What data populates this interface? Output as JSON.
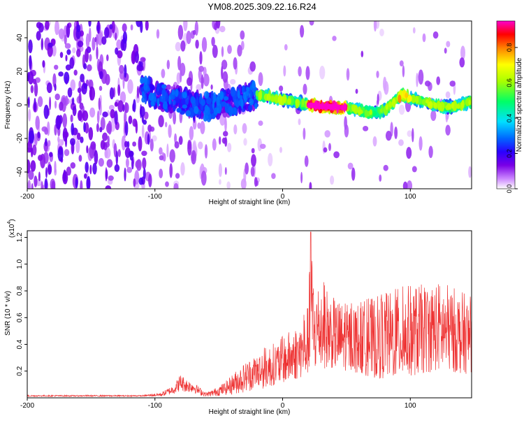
{
  "page_title": "YM08.2025.309.22.16.R24",
  "chart_data": [
    {
      "type": "heatmap",
      "title": "YM08.2025.309.22.16.R24",
      "xlabel": "Height of straight line (km)",
      "ylabel": "Frequency (Hz)",
      "xlim": [
        -200,
        148
      ],
      "ylim": [
        -50,
        50
      ],
      "xticks": [
        -200,
        -100,
        0,
        100
      ],
      "yticks": [
        -40,
        -20,
        0,
        20,
        40
      ],
      "xtick_labels": [
        "-200",
        "-100",
        "0",
        "100"
      ],
      "ytick_labels": [
        "-40",
        "-20",
        "0",
        "20",
        "40"
      ],
      "colorbar": {
        "label": "Normalized spectral amplitude",
        "range": [
          0,
          0.95
        ],
        "ticks": [
          0.0,
          0.2,
          0.4,
          0.6,
          0.8
        ],
        "tick_labels": [
          "0.0",
          "0.2",
          "0.4",
          "0.6",
          "0.8"
        ],
        "colors": [
          "#ffffff",
          "#cc88ff",
          "#7a00e6",
          "#2a00ff",
          "#0066ff",
          "#00e0ff",
          "#00ff66",
          "#a8ff00",
          "#ffff00",
          "#ff8000",
          "#ff0000",
          "#ff00cc"
        ]
      },
      "ridge_center": {
        "x": [
          -110,
          -100,
          -90,
          -80,
          -70,
          -60,
          -50,
          -40,
          -30,
          -20,
          -10,
          0,
          10,
          20,
          30,
          40,
          50,
          60,
          70,
          80,
          90,
          95,
          100,
          110,
          120,
          130,
          140,
          148
        ],
        "freq": [
          10,
          6,
          4,
          2,
          0,
          -1,
          0,
          2,
          4,
          6,
          5,
          3,
          2,
          0,
          -1,
          -1,
          -2,
          -3,
          -5,
          -3,
          4,
          6,
          4,
          2,
          0,
          -1,
          0,
          2
        ]
      },
      "peak_region": {
        "x": [
          20,
          50
        ],
        "freq": [
          -2,
          1
        ],
        "value": 0.95
      }
    },
    {
      "type": "line",
      "xlabel": "Height of straight line (km)",
      "ylabel": "SNR (10 * v/v)",
      "scale_label": "(x10",
      "scale_exponent": "4",
      "scale_close": ")",
      "xlim": [
        -200,
        148
      ],
      "ylim": [
        0,
        1.25
      ],
      "xticks": [
        -200,
        -100,
        0,
        100
      ],
      "yticks": [
        0.2,
        0.4,
        0.6,
        0.8,
        1.0,
        1.2
      ],
      "xtick_labels": [
        "-200",
        "-100",
        "0",
        "100"
      ],
      "ytick_labels": [
        "0.2",
        "0.4",
        "0.6",
        "0.8",
        "1.0",
        "1.2"
      ],
      "series": [
        {
          "name": "SNR",
          "color": "#ee3333",
          "envelope_x": [
            -200,
            -150,
            -110,
            -95,
            -85,
            -80,
            -75,
            -70,
            -65,
            -60,
            -55,
            -45,
            -35,
            -25,
            -15,
            -5,
            5,
            15,
            20,
            22,
            25,
            30,
            40,
            50,
            60,
            70,
            80,
            90,
            100,
            110,
            120,
            130,
            140,
            148
          ],
          "envelope_y": [
            0.02,
            0.02,
            0.02,
            0.04,
            0.1,
            0.18,
            0.14,
            0.12,
            0.08,
            0.04,
            0.06,
            0.12,
            0.22,
            0.3,
            0.38,
            0.42,
            0.5,
            0.58,
            0.7,
            1.22,
            0.85,
            0.9,
            0.75,
            0.7,
            0.72,
            0.75,
            0.78,
            0.82,
            0.85,
            0.85,
            0.88,
            0.85,
            0.8,
            0.75
          ],
          "floor_y": [
            0.01,
            0.01,
            0.01,
            0.01,
            0.03,
            0.05,
            0.04,
            0.04,
            0.02,
            0.01,
            0.01,
            0.02,
            0.03,
            0.05,
            0.07,
            0.1,
            0.12,
            0.15,
            0.18,
            0.2,
            0.2,
            0.22,
            0.22,
            0.2,
            0.18,
            0.15,
            0.14,
            0.15,
            0.16,
            0.18,
            0.2,
            0.2,
            0.18,
            0.18
          ]
        }
      ]
    }
  ]
}
